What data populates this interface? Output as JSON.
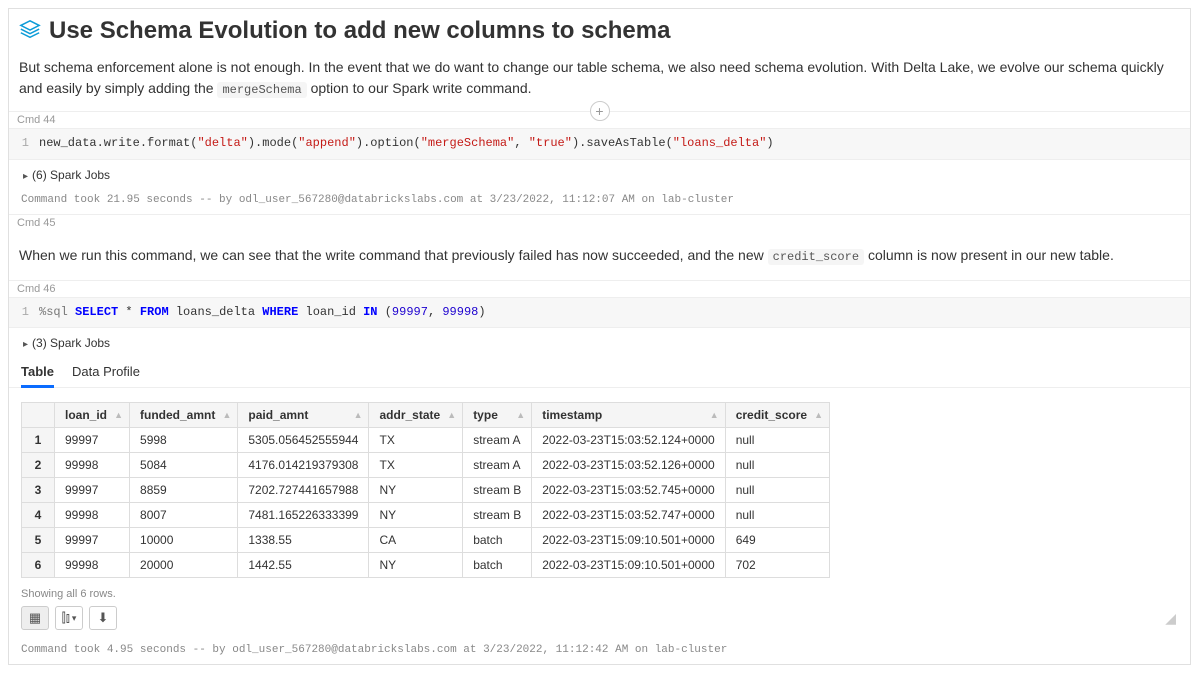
{
  "title": "Use Schema Evolution to add new columns to schema",
  "desc_pre": "But schema enforcement alone is not enough. In the event that we do want to change our table schema, we also need schema evolution. With Delta Lake, we evolve our schema quickly and easily by simply adding the ",
  "desc_code": "mergeSchema",
  "desc_post": " option to our Spark write command.",
  "cmd44_label": "Cmd 44",
  "add_symbol": "+",
  "cmd44_gutter": "1",
  "cmd44_code_plain1": "new_data.write.format(",
  "cmd44_s1": "\"delta\"",
  "cmd44_code_plain2": ").mode(",
  "cmd44_s2": "\"append\"",
  "cmd44_code_plain3": ").option(",
  "cmd44_s3": "\"mergeSchema\"",
  "cmd44_comma": ", ",
  "cmd44_s4": "\"true\"",
  "cmd44_code_plain4": ").saveAsTable(",
  "cmd44_s5": "\"loans_delta\"",
  "cmd44_code_plain5": ")",
  "cmd44_jobs": "(6) Spark Jobs",
  "cmd44_status": "Command took 21.95 seconds -- by odl_user_567280@databrickslabs.com at 3/23/2022, 11:12:07 AM on lab-cluster",
  "cmd45_label": "Cmd 45",
  "cmd45_text_pre": "When we run this command, we can see that the write command that previously failed has now succeeded, and the new ",
  "cmd45_code": "credit_score",
  "cmd45_text_post": " column is now present in our new table.",
  "cmd46_label": "Cmd 46",
  "cmd46_gutter": "1",
  "cmd46_magic": "%sql ",
  "cmd46_k1": "SELECT",
  "cmd46_p1": " * ",
  "cmd46_k2": "FROM",
  "cmd46_p2": " loans_delta ",
  "cmd46_k3": "WHERE",
  "cmd46_p3": " loan_id ",
  "cmd46_k4": "IN",
  "cmd46_p4": " (",
  "cmd46_n1": "99997",
  "cmd46_c": ", ",
  "cmd46_n2": "99998",
  "cmd46_p5": ")",
  "cmd46_jobs": "(3) Spark Jobs",
  "tabs": {
    "table": "Table",
    "profile": "Data Profile"
  },
  "columns": [
    "loan_id",
    "funded_amnt",
    "paid_amnt",
    "addr_state",
    "type",
    "timestamp",
    "credit_score"
  ],
  "rows": [
    [
      "1",
      "99997",
      "5998",
      "5305.056452555944",
      "TX",
      "stream A",
      "2022-03-23T15:03:52.124+0000",
      "null"
    ],
    [
      "2",
      "99998",
      "5084",
      "4176.014219379308",
      "TX",
      "stream A",
      "2022-03-23T15:03:52.126+0000",
      "null"
    ],
    [
      "3",
      "99997",
      "8859",
      "7202.727441657988",
      "NY",
      "stream B",
      "2022-03-23T15:03:52.745+0000",
      "null"
    ],
    [
      "4",
      "99998",
      "8007",
      "7481.165226333399",
      "NY",
      "stream B",
      "2022-03-23T15:03:52.747+0000",
      "null"
    ],
    [
      "5",
      "99997",
      "10000",
      "1338.55",
      "CA",
      "batch",
      "2022-03-23T15:09:10.501+0000",
      "649"
    ],
    [
      "6",
      "99998",
      "20000",
      "1442.55",
      "NY",
      "batch",
      "2022-03-23T15:09:10.501+0000",
      "702"
    ]
  ],
  "rowcount": "Showing all 6 rows.",
  "cmd46_status": "Command took 4.95 seconds -- by odl_user_567280@databrickslabs.com at 3/23/2022, 11:12:42 AM on lab-cluster",
  "tri": "▸",
  "sort_glyph": "▲",
  "icons": {
    "table": "▦",
    "chart": "⫿⫾",
    "caret": "▾",
    "download": "⬇"
  },
  "colors": {
    "accent": "#0b6cff",
    "string": "#c41a16",
    "keyword": "#0000ff",
    "number": "#1c00cf"
  }
}
